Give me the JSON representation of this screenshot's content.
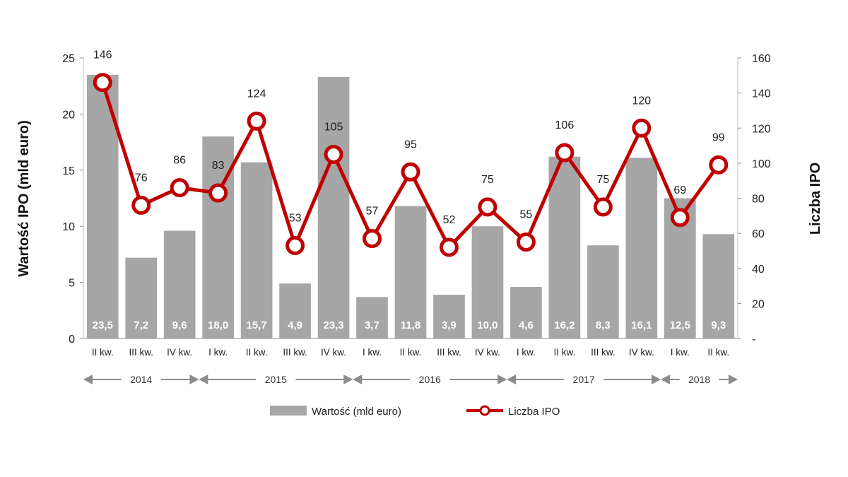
{
  "chart_data": {
    "type": "bar+line",
    "categories": [
      "II kw.",
      "III kw.",
      "IV kw.",
      "I kw.",
      "II kw.",
      "III kw.",
      "IV kw.",
      "I kw.",
      "II kw.",
      "III kw.",
      "IV kw.",
      "I kw.",
      "II kw.",
      "III kw.",
      "IV kw.",
      "I kw.",
      "II kw."
    ],
    "series": [
      {
        "name": "Wartość (mld euro)",
        "type": "bar",
        "axis": "left",
        "color": "#a6a6a6",
        "values": [
          23.5,
          7.2,
          9.6,
          18.0,
          15.7,
          4.9,
          23.3,
          3.7,
          11.8,
          3.9,
          10.0,
          4.6,
          16.2,
          8.3,
          16.1,
          12.5,
          9.3
        ],
        "labels": [
          "23,5",
          "7,2",
          "9,6",
          "18,0",
          "15,7",
          "4,9",
          "23,3",
          "3,7",
          "11,8",
          "3,9",
          "10,0",
          "4,6",
          "16,2",
          "8,3",
          "16,1",
          "12,5",
          "9,3"
        ]
      },
      {
        "name": "Liczba IPO",
        "type": "line",
        "axis": "right",
        "color": "#c00000",
        "values": [
          146,
          76,
          86,
          83,
          124,
          53,
          105,
          57,
          95,
          52,
          75,
          55,
          106,
          75,
          120,
          69,
          99
        ],
        "labels": [
          "146",
          "76",
          "86",
          "83",
          "124",
          "53",
          "105",
          "57",
          "95",
          "52",
          "75",
          "55",
          "106",
          "75",
          "120",
          "69",
          "99"
        ]
      }
    ],
    "years": [
      {
        "label": "2014",
        "from": 0,
        "to": 2
      },
      {
        "label": "2015",
        "from": 3,
        "to": 6
      },
      {
        "label": "2016",
        "from": 7,
        "to": 10
      },
      {
        "label": "2017",
        "from": 11,
        "to": 14
      },
      {
        "label": "2018",
        "from": 15,
        "to": 16
      }
    ],
    "ylabel": "Wartość IPO (mld euro)",
    "y2label": "Liczba IPO",
    "ylim": [
      0,
      25
    ],
    "y2lim": [
      0,
      160
    ],
    "yticks": [
      "0",
      "5",
      "10",
      "15",
      "20",
      "25"
    ],
    "y2ticks": [
      "-",
      "20",
      "40",
      "60",
      "80",
      "100",
      "120",
      "140",
      "160"
    ],
    "grid": false,
    "legend_position": "bottom"
  }
}
